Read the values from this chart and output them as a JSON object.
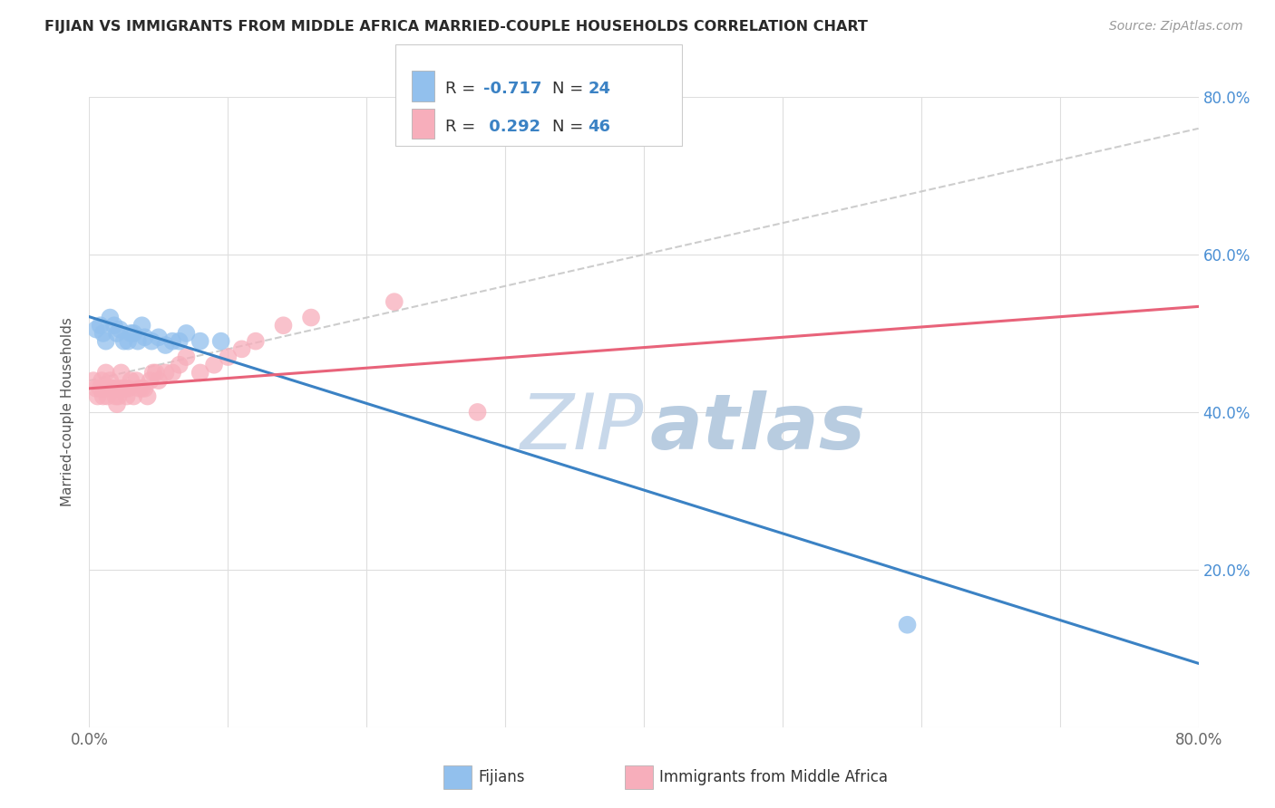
{
  "title": "FIJIAN VS IMMIGRANTS FROM MIDDLE AFRICA MARRIED-COUPLE HOUSEHOLDS CORRELATION CHART",
  "source": "Source: ZipAtlas.com",
  "ylabel": "Married-couple Households",
  "xlim": [
    0,
    0.8
  ],
  "ylim": [
    0,
    0.8
  ],
  "fijian_color": "#92C0ED",
  "immigrant_color": "#F7AEBB",
  "fijian_line_color": "#3B82C4",
  "immigrant_line_color": "#E8637A",
  "dashed_line_color": "#C8C8C8",
  "R_fijian": -0.717,
  "N_fijian": 24,
  "R_immigrant": 0.292,
  "N_immigrant": 46,
  "fijian_x": [
    0.005,
    0.008,
    0.01,
    0.012,
    0.015,
    0.018,
    0.02,
    0.022,
    0.025,
    0.028,
    0.03,
    0.032,
    0.035,
    0.038,
    0.04,
    0.045,
    0.05,
    0.055,
    0.06,
    0.065,
    0.07,
    0.08,
    0.095,
    0.59
  ],
  "fijian_y": [
    0.505,
    0.51,
    0.5,
    0.49,
    0.52,
    0.51,
    0.5,
    0.505,
    0.49,
    0.49,
    0.5,
    0.5,
    0.49,
    0.51,
    0.495,
    0.49,
    0.495,
    0.485,
    0.49,
    0.49,
    0.5,
    0.49,
    0.49,
    0.13
  ],
  "immigrant_x": [
    0.003,
    0.005,
    0.006,
    0.008,
    0.009,
    0.01,
    0.011,
    0.012,
    0.013,
    0.015,
    0.016,
    0.017,
    0.018,
    0.019,
    0.02,
    0.021,
    0.022,
    0.023,
    0.025,
    0.026,
    0.027,
    0.028,
    0.03,
    0.032,
    0.034,
    0.036,
    0.038,
    0.04,
    0.042,
    0.044,
    0.046,
    0.048,
    0.05,
    0.055,
    0.06,
    0.065,
    0.07,
    0.08,
    0.09,
    0.1,
    0.11,
    0.12,
    0.14,
    0.16,
    0.22,
    0.28
  ],
  "immigrant_y": [
    0.44,
    0.43,
    0.42,
    0.43,
    0.44,
    0.42,
    0.43,
    0.45,
    0.42,
    0.44,
    0.43,
    0.43,
    0.43,
    0.42,
    0.41,
    0.42,
    0.43,
    0.45,
    0.43,
    0.43,
    0.42,
    0.43,
    0.44,
    0.42,
    0.44,
    0.43,
    0.43,
    0.43,
    0.42,
    0.44,
    0.45,
    0.45,
    0.44,
    0.45,
    0.45,
    0.46,
    0.47,
    0.45,
    0.46,
    0.47,
    0.48,
    0.49,
    0.51,
    0.52,
    0.54,
    0.4
  ],
  "watermark_zip": "ZIP",
  "watermark_atlas": "atlas",
  "watermark_color": "#C8D8EA",
  "background_color": "#FFFFFF",
  "grid_color": "#DEDEDE"
}
